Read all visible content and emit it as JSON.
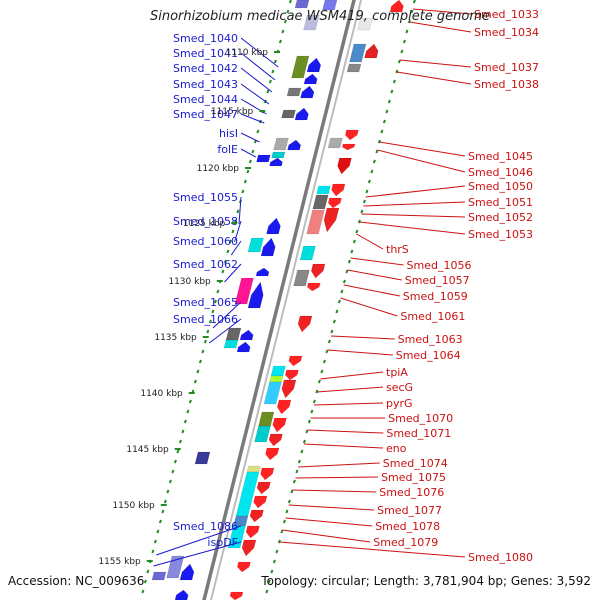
{
  "title": "Sinorhizobium medicae WSM419, complete genome",
  "footer": {
    "accession": "Accession: NC_009636",
    "summary": "Topology: circular; Length: 3,781,904 bp; Genes: 3,592"
  },
  "colors": {
    "left_label": "#1a1acc",
    "right_label": "#cc1111",
    "tick": "#228b22",
    "backbone": "#888888"
  },
  "ticks": [
    {
      "label": "1110 kbp",
      "v": 52
    },
    {
      "label": "1115 kbp",
      "v": 111
    },
    {
      "label": "1120 kbp",
      "v": 168
    },
    {
      "label": "1125 kbp",
      "v": 223
    },
    {
      "label": "1130 kbp",
      "v": 281
    },
    {
      "label": "1135 kbp",
      "v": 337
    },
    {
      "label": "1140 kbp",
      "v": 393
    },
    {
      "label": "1145 kbp",
      "v": 449
    },
    {
      "label": "1150 kbp",
      "v": 505
    },
    {
      "label": "1155 kbp",
      "v": 561
    }
  ],
  "left_labels": [
    {
      "text": "Smed_1040",
      "v": 42,
      "gv": 67
    },
    {
      "text": "Smed_1041",
      "v": 57,
      "gv": 80
    },
    {
      "text": "Smed_1042",
      "v": 72,
      "gv": 92
    },
    {
      "text": "Smed_1043",
      "v": 88,
      "gv": 104
    },
    {
      "text": "Smed_1044",
      "v": 103,
      "gv": 114
    },
    {
      "text": "Smed_1047",
      "v": 118,
      "gv": 123
    },
    {
      "text": "hisI",
      "v": 137,
      "gv": 142
    },
    {
      "text": "folE",
      "v": 153,
      "gv": 157
    },
    {
      "text": "Smed_1055",
      "v": 201,
      "gv": 224
    },
    {
      "text": "Smed_1058",
      "v": 225,
      "gv": 242
    },
    {
      "text": "Smed_1060",
      "v": 245,
      "gv": 255
    },
    {
      "text": "Smed_1062",
      "v": 268,
      "gv": 282
    },
    {
      "text": "Smed_1065",
      "v": 306,
      "gv": 328
    },
    {
      "text": "Smed_1066",
      "v": 323,
      "gv": 343
    },
    {
      "text": "Smed_1086",
      "v": 530,
      "gv": 555
    },
    {
      "text": "ispDF",
      "v": 546,
      "gv": 566
    }
  ],
  "right_labels": [
    {
      "text": "Smed_1033",
      "v": 18,
      "gv": 9
    },
    {
      "text": "Smed_1034",
      "v": 36,
      "gv": 22
    },
    {
      "text": "Smed_1037",
      "v": 71,
      "gv": 60
    },
    {
      "text": "Smed_1038",
      "v": 88,
      "gv": 72
    },
    {
      "text": "Smed_1045",
      "v": 160,
      "gv": 142
    },
    {
      "text": "Smed_1046",
      "v": 176,
      "gv": 150
    },
    {
      "text": "Smed_1050",
      "v": 190,
      "gv": 197
    },
    {
      "text": "Smed_1051",
      "v": 206,
      "gv": 206
    },
    {
      "text": "Smed_1052",
      "v": 221,
      "gv": 214
    },
    {
      "text": "Smed_1053",
      "v": 238,
      "gv": 222
    },
    {
      "text": "thrS",
      "v": 253,
      "gv": 234
    },
    {
      "text": "Smed_1056",
      "v": 269,
      "gv": 258
    },
    {
      "text": "Smed_1057",
      "v": 284,
      "gv": 270
    },
    {
      "text": "Smed_1059",
      "v": 300,
      "gv": 285
    },
    {
      "text": "Smed_1061",
      "v": 320,
      "gv": 298
    },
    {
      "text": "Smed_1063",
      "v": 343,
      "gv": 336
    },
    {
      "text": "Smed_1064",
      "v": 359,
      "gv": 350
    },
    {
      "text": "tpiA",
      "v": 376,
      "gv": 379
    },
    {
      "text": "secG",
      "v": 391,
      "gv": 392
    },
    {
      "text": "pyrG",
      "v": 407,
      "gv": 405
    },
    {
      "text": "Smed_1070",
      "v": 422,
      "gv": 418
    },
    {
      "text": "Smed_1071",
      "v": 437,
      "gv": 430
    },
    {
      "text": "eno",
      "v": 452,
      "gv": 444
    },
    {
      "text": "Smed_1074",
      "v": 467,
      "gv": 467
    },
    {
      "text": "Smed_1075",
      "v": 481,
      "gv": 478
    },
    {
      "text": "Smed_1076",
      "v": 496,
      "gv": 490
    },
    {
      "text": "Smed_1077",
      "v": 514,
      "gv": 505
    },
    {
      "text": "Smed_1078",
      "v": 530,
      "gv": 518
    },
    {
      "text": "Smed_1079",
      "v": 546,
      "gv": 530
    },
    {
      "text": "Smed_1080",
      "v": 561,
      "gv": 542
    }
  ],
  "features": [
    {
      "track": 1,
      "v1": 0,
      "v2": 8,
      "color": "#6a6ad0",
      "shape": "box"
    },
    {
      "track": 2,
      "v1": 15,
      "v2": 30,
      "color": "#bbbbdd",
      "shape": "box"
    },
    {
      "track": 3,
      "v1": 0,
      "v2": 10,
      "color": "#7777ee",
      "shape": "box"
    },
    {
      "track": -1,
      "v1": 18,
      "v2": 30,
      "color": "#e8e8e8",
      "shape": "box"
    },
    {
      "track": -3,
      "v1": 0,
      "v2": 12,
      "color": "#ff2222",
      "shape": "arrow",
      "dir": -1
    },
    {
      "track": 2,
      "v1": 56,
      "v2": 78,
      "color": "#6b8e23",
      "shape": "box"
    },
    {
      "track": 3,
      "v1": 58,
      "v2": 72,
      "color": "#1a1aee",
      "shape": "arrow",
      "dir": -1
    },
    {
      "track": 3,
      "v1": 74,
      "v2": 84,
      "color": "#1a1aee",
      "shape": "arrow",
      "dir": -1
    },
    {
      "track": -1,
      "v1": 44,
      "v2": 62,
      "color": "#4a8ac8",
      "shape": "box"
    },
    {
      "track": -2,
      "v1": 44,
      "v2": 58,
      "color": "#e22222",
      "shape": "arrow",
      "dir": -1
    },
    {
      "track": -1,
      "v1": 64,
      "v2": 72,
      "color": "#888888",
      "shape": "box"
    },
    {
      "track": 2,
      "v1": 88,
      "v2": 96,
      "color": "#777777",
      "shape": "box"
    },
    {
      "track": 3,
      "v1": 86,
      "v2": 98,
      "color": "#1a1aee",
      "shape": "arrow",
      "dir": -1
    },
    {
      "track": 2,
      "v1": 110,
      "v2": 118,
      "color": "#666666",
      "shape": "box"
    },
    {
      "track": 3,
      "v1": 108,
      "v2": 120,
      "color": "#1a1aee",
      "shape": "arrow",
      "dir": -1
    },
    {
      "track": 2,
      "v1": 138,
      "v2": 150,
      "color": "#aaaaaa",
      "shape": "box"
    },
    {
      "track": 3,
      "v1": 140,
      "v2": 150,
      "color": "#1a1aee",
      "shape": "arrow",
      "dir": -1
    },
    {
      "track": 2,
      "v1": 152,
      "v2": 158,
      "color": "#00cccc",
      "shape": "box"
    },
    {
      "track": 1,
      "v1": 155,
      "v2": 162,
      "color": "#1a1aee",
      "shape": "box"
    },
    {
      "track": 2,
      "v1": 158,
      "v2": 166,
      "color": "#1a1aee",
      "shape": "arrow",
      "dir": -1
    },
    {
      "track": -1,
      "v1": 138,
      "v2": 148,
      "color": "#aaaaaa",
      "shape": "box"
    },
    {
      "track": -2,
      "v1": 130,
      "v2": 140,
      "color": "#ff2222",
      "shape": "arrow",
      "dir": 1
    },
    {
      "track": -2,
      "v1": 144,
      "v2": 150,
      "color": "#ff2222",
      "shape": "arrow",
      "dir": 1
    },
    {
      "track": -2,
      "v1": 158,
      "v2": 174,
      "color": "#dd1111",
      "shape": "arrow",
      "dir": 1
    },
    {
      "track": -2,
      "v1": 184,
      "v2": 196,
      "color": "#ff2222",
      "shape": "arrow",
      "dir": 1
    },
    {
      "track": -1,
      "v1": 186,
      "v2": 194,
      "color": "#00e5ee",
      "shape": "box"
    },
    {
      "track": -1,
      "v1": 195,
      "v2": 209,
      "color": "#666666",
      "shape": "box"
    },
    {
      "track": -2,
      "v1": 198,
      "v2": 208,
      "color": "#ff2222",
      "shape": "arrow",
      "dir": 1
    },
    {
      "track": -2,
      "v1": 208,
      "v2": 232,
      "color": "#ee2222",
      "shape": "arrow",
      "dir": 1
    },
    {
      "track": -1,
      "v1": 210,
      "v2": 234,
      "color": "#f08080",
      "shape": "box"
    },
    {
      "track": 3,
      "v1": 218,
      "v2": 234,
      "color": "#1a1aee",
      "shape": "arrow",
      "dir": -1
    },
    {
      "track": 2,
      "v1": 238,
      "v2": 252,
      "color": "#00dddd",
      "shape": "box"
    },
    {
      "track": 3,
      "v1": 238,
      "v2": 256,
      "color": "#1a1aee",
      "shape": "arrow",
      "dir": -1
    },
    {
      "track": -1,
      "v1": 246,
      "v2": 260,
      "color": "#00dddd",
      "shape": "box"
    },
    {
      "track": -2,
      "v1": 264,
      "v2": 278,
      "color": "#ee2222",
      "shape": "arrow",
      "dir": 1
    },
    {
      "track": -1,
      "v1": 270,
      "v2": 286,
      "color": "#888888",
      "shape": "box"
    },
    {
      "track": -2,
      "v1": 283,
      "v2": 291,
      "color": "#ff2222",
      "shape": "arrow",
      "dir": 1
    },
    {
      "track": 3,
      "v1": 268,
      "v2": 276,
      "color": "#1a1aee",
      "shape": "arrow",
      "dir": -1
    },
    {
      "track": 2,
      "v1": 278,
      "v2": 304,
      "color": "#ff1493",
      "shape": "box"
    },
    {
      "track": 3,
      "v1": 282,
      "v2": 308,
      "color": "#1a1aee",
      "shape": "arrow",
      "dir": -1
    },
    {
      "track": 2,
      "v1": 328,
      "v2": 340,
      "color": "#666666",
      "shape": "box"
    },
    {
      "track": 2,
      "v1": 340,
      "v2": 348,
      "color": "#00dddd",
      "shape": "box"
    },
    {
      "track": 3,
      "v1": 330,
      "v2": 340,
      "color": "#1a1aee",
      "shape": "arrow",
      "dir": -1
    },
    {
      "track": 3,
      "v1": 342,
      "v2": 352,
      "color": "#1a1aee",
      "shape": "arrow",
      "dir": -1
    },
    {
      "track": -2,
      "v1": 316,
      "v2": 332,
      "color": "#ee2222",
      "shape": "arrow",
      "dir": 1
    },
    {
      "track": -2,
      "v1": 356,
      "v2": 366,
      "color": "#ff2222",
      "shape": "arrow",
      "dir": 1
    },
    {
      "track": -1,
      "v1": 366,
      "v2": 376,
      "color": "#00e5ee",
      "shape": "box"
    },
    {
      "track": -2,
      "v1": 370,
      "v2": 380,
      "color": "#ff2222",
      "shape": "arrow",
      "dir": 1
    },
    {
      "track": -1,
      "v1": 376,
      "v2": 382,
      "color": "#adff2f",
      "shape": "box"
    },
    {
      "track": -1,
      "v1": 382,
      "v2": 404,
      "color": "#33ccff",
      "shape": "box"
    },
    {
      "track": -2,
      "v1": 380,
      "v2": 398,
      "color": "#ee2222",
      "shape": "arrow",
      "dir": 1
    },
    {
      "track": -2,
      "v1": 400,
      "v2": 414,
      "color": "#ff2222",
      "shape": "arrow",
      "dir": 1
    },
    {
      "track": -1,
      "v1": 412,
      "v2": 426,
      "color": "#6b8e23",
      "shape": "box"
    },
    {
      "track": -1,
      "v1": 426,
      "v2": 442,
      "color": "#00cccc",
      "shape": "box"
    },
    {
      "track": -2,
      "v1": 418,
      "v2": 432,
      "color": "#ff2222",
      "shape": "arrow",
      "dir": 1
    },
    {
      "track": -2,
      "v1": 434,
      "v2": 446,
      "color": "#ee2222",
      "shape": "arrow",
      "dir": 1
    },
    {
      "track": 2,
      "v1": 452,
      "v2": 464,
      "color": "#3a3a9a",
      "shape": "box"
    },
    {
      "track": -2,
      "v1": 448,
      "v2": 460,
      "color": "#ff2222",
      "shape": "arrow",
      "dir": 1
    },
    {
      "track": -1,
      "v1": 466,
      "v2": 472,
      "color": "#dddd88",
      "shape": "box"
    },
    {
      "track": -1,
      "v1": 472,
      "v2": 516,
      "color": "#00e5ee",
      "shape": "box"
    },
    {
      "track": -2,
      "v1": 468,
      "v2": 480,
      "color": "#ff2222",
      "shape": "arrow",
      "dir": 1
    },
    {
      "track": -2,
      "v1": 482,
      "v2": 494,
      "color": "#ee2222",
      "shape": "arrow",
      "dir": 1
    },
    {
      "track": -2,
      "v1": 496,
      "v2": 508,
      "color": "#ff2222",
      "shape": "arrow",
      "dir": 1
    },
    {
      "track": -2,
      "v1": 510,
      "v2": 522,
      "color": "#ee2222",
      "shape": "arrow",
      "dir": 1
    },
    {
      "track": -1,
      "v1": 516,
      "v2": 526,
      "color": "#4a8ac8",
      "shape": "box"
    },
    {
      "track": -1,
      "v1": 526,
      "v2": 548,
      "color": "#00e5ee",
      "shape": "box"
    },
    {
      "track": -2,
      "v1": 526,
      "v2": 538,
      "color": "#ff2222",
      "shape": "arrow",
      "dir": 1
    },
    {
      "track": -2,
      "v1": 540,
      "v2": 556,
      "color": "#ee2222",
      "shape": "arrow",
      "dir": 1
    },
    {
      "track": 2,
      "v1": 556,
      "v2": 578,
      "color": "#8888dd",
      "shape": "box"
    },
    {
      "track": 3,
      "v1": 564,
      "v2": 580,
      "color": "#1a1aee",
      "shape": "arrow",
      "dir": -1
    },
    {
      "track": 1,
      "v1": 572,
      "v2": 580,
      "color": "#6a6ad0",
      "shape": "box"
    },
    {
      "track": -2,
      "v1": 562,
      "v2": 572,
      "color": "#ff2222",
      "shape": "arrow",
      "dir": 1
    },
    {
      "track": -2,
      "v1": 592,
      "v2": 600,
      "color": "#ff2222",
      "shape": "arrow",
      "dir": 1
    },
    {
      "track": 3,
      "v1": 590,
      "v2": 600,
      "color": "#1a1aee",
      "shape": "arrow",
      "dir": -1
    }
  ]
}
